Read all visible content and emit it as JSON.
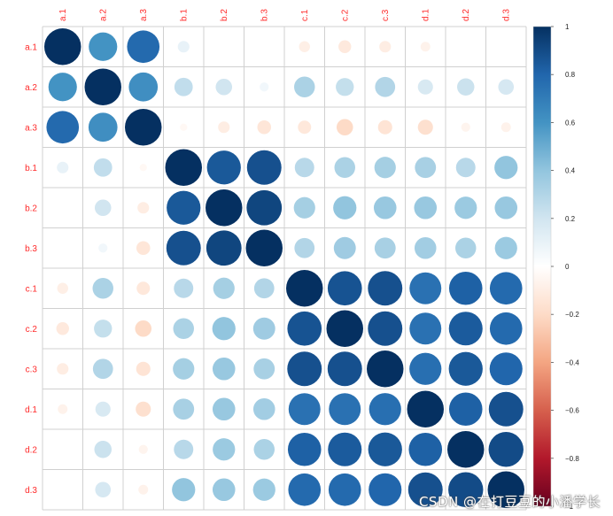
{
  "chart_data": {
    "type": "heatmap",
    "style": "correlation-circles",
    "labels": [
      "a.1",
      "a.2",
      "a.3",
      "b.1",
      "b.2",
      "b.3",
      "c.1",
      "c.2",
      "c.3",
      "d.1",
      "d.2",
      "d.3"
    ],
    "matrix": [
      [
        1.0,
        0.6,
        0.78,
        0.1,
        0.0,
        0.0,
        -0.09,
        -0.12,
        -0.1,
        -0.07,
        0.0,
        0.0
      ],
      [
        0.6,
        1.0,
        0.62,
        0.25,
        0.2,
        0.06,
        0.32,
        0.24,
        0.3,
        0.17,
        0.22,
        0.18
      ],
      [
        0.78,
        0.62,
        1.0,
        -0.04,
        -0.1,
        -0.14,
        -0.13,
        -0.2,
        -0.15,
        -0.17,
        -0.06,
        -0.07
      ],
      [
        0.1,
        0.25,
        -0.04,
        1.0,
        0.85,
        0.88,
        0.28,
        0.32,
        0.34,
        0.33,
        0.28,
        0.4
      ],
      [
        0.0,
        0.2,
        -0.1,
        0.85,
        1.0,
        0.92,
        0.34,
        0.4,
        0.38,
        0.38,
        0.37,
        0.38
      ],
      [
        0.0,
        0.06,
        -0.14,
        0.88,
        0.92,
        1.0,
        0.3,
        0.36,
        0.33,
        0.35,
        0.32,
        0.37
      ],
      [
        -0.09,
        0.32,
        -0.13,
        0.28,
        0.34,
        0.3,
        1.0,
        0.87,
        0.88,
        0.75,
        0.82,
        0.78
      ],
      [
        -0.12,
        0.24,
        -0.2,
        0.32,
        0.4,
        0.36,
        0.87,
        1.0,
        0.88,
        0.75,
        0.84,
        0.78
      ],
      [
        -0.1,
        0.3,
        -0.15,
        0.34,
        0.38,
        0.33,
        0.88,
        0.88,
        1.0,
        0.76,
        0.85,
        0.8
      ],
      [
        -0.07,
        0.17,
        -0.17,
        0.33,
        0.38,
        0.35,
        0.75,
        0.75,
        0.76,
        1.0,
        0.82,
        0.88
      ],
      [
        0.0,
        0.22,
        -0.06,
        0.28,
        0.37,
        0.32,
        0.82,
        0.84,
        0.85,
        0.82,
        1.0,
        0.9
      ],
      [
        0.0,
        0.18,
        -0.07,
        0.4,
        0.38,
        0.37,
        0.78,
        0.78,
        0.8,
        0.88,
        0.9,
        1.0
      ]
    ],
    "colorbar": {
      "range": [
        -1,
        1
      ],
      "ticks": [
        "1",
        "0.8",
        "0.6",
        "0.4",
        "0.2",
        "0",
        "−0.2",
        "−0.4",
        "−0.6",
        "−0.8",
        "−1"
      ]
    },
    "colors": {
      "neg_extreme": "#67001f",
      "neg_strong": "#b2182b",
      "neg_mid": "#d6604d",
      "neg_weak": "#f4a582",
      "neg_faint": "#fddbc7",
      "zero": "#ffffff",
      "pos_faint": "#d1e5f0",
      "pos_weak": "#92c5de",
      "pos_mid": "#4393c3",
      "pos_strong": "#2166ac",
      "pos_extreme": "#053061",
      "label_color": "#ff2a2a",
      "grid": "#d0d0d0"
    },
    "grid": true
  },
  "watermark": "CSDN @在打豆豆的小潘学长"
}
